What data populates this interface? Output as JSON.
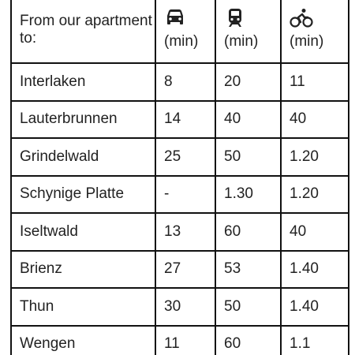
{
  "table": {
    "header": {
      "first": "From our apartment to:",
      "modes": [
        {
          "icon": "car-icon",
          "unit": "(min)"
        },
        {
          "icon": "train-icon",
          "unit": "(min)"
        },
        {
          "icon": "bicycle-icon",
          "unit": "(min)"
        }
      ]
    },
    "rows": [
      {
        "destination": "Interlaken",
        "car": "8",
        "train": "20",
        "bike": "11"
      },
      {
        "destination": "Lauterbrunnen",
        "car": "14",
        "train": "40",
        "bike": "40"
      },
      {
        "destination": "Grindelwald",
        "car": "25",
        "train": "50",
        "bike": "1.20"
      },
      {
        "destination": "Schynige Platte",
        "car": "-",
        "train": "1.30",
        "bike": "1.20"
      },
      {
        "destination": "Iseltwald",
        "car": "13",
        "train": "60",
        "bike": "40"
      },
      {
        "destination": "Brienz",
        "car": "27",
        "train": "53",
        "bike": "1.40"
      },
      {
        "destination": "Thun",
        "car": "30",
        "train": "50",
        "bike": "1.40"
      },
      {
        "destination": "Wengen",
        "car": "11",
        "train": "60",
        "bike": "1.1"
      }
    ]
  }
}
